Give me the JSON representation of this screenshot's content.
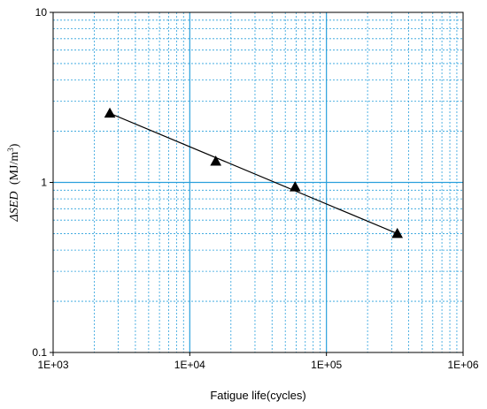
{
  "chart_data": {
    "type": "scatter",
    "title": "",
    "xlabel": "Fatigue life(cycles)",
    "ylabel_symbol": "ΔSED",
    "ylabel_units": "(MJ/m",
    "ylabel_exp": "3",
    "ylabel_close": ")",
    "xscale": "log",
    "yscale": "log",
    "xlim": [
      1000,
      1000000
    ],
    "ylim": [
      0.1,
      10
    ],
    "x_tick_labels": [
      "1E+03",
      "1E+04",
      "1E+05",
      "1E+06"
    ],
    "y_tick_labels": [
      "0.1",
      "1",
      "10"
    ],
    "grid": true,
    "grid_style": "major solid, minor dotted",
    "legend": false,
    "series": [
      {
        "marker": "triangle",
        "color": "#000000",
        "points": [
          {
            "x": 2600,
            "y": 2.55
          },
          {
            "x": 15500,
            "y": 1.33
          },
          {
            "x": 59000,
            "y": 0.94
          },
          {
            "x": 330000,
            "y": 0.5
          }
        ]
      }
    ],
    "fit_line": {
      "color": "#000000",
      "from": {
        "x": 2600,
        "y": 2.55
      },
      "to": {
        "x": 330000,
        "y": 0.5
      }
    }
  },
  "colors": {
    "major_grid": "#2aa0dc",
    "minor_grid": "#2aa0dc",
    "frame": "#000000",
    "marker": "#000000"
  }
}
